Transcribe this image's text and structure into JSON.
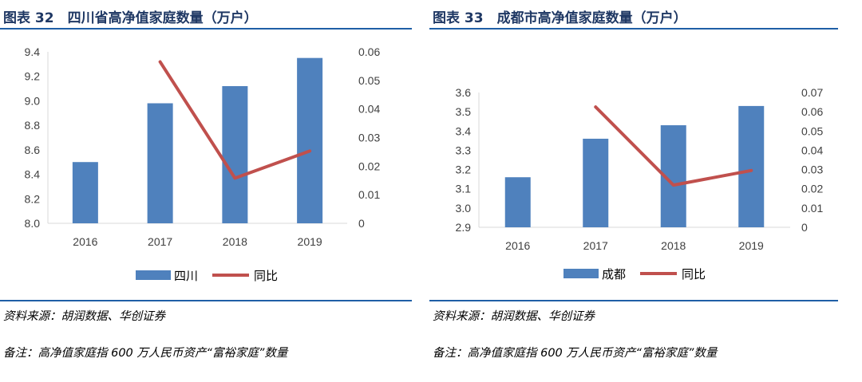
{
  "left": {
    "title": "图表 32　四川省高净值家庭数量（万户）",
    "source": "资料来源：胡润数据、华创证券",
    "remark": "备注：高净值家庭指 600 万人民币资产“富裕家庭”数量",
    "chart_data": {
      "type": "bar+line",
      "categories": [
        "2016",
        "2017",
        "2018",
        "2019"
      ],
      "series": [
        {
          "name": "四川",
          "type": "bar",
          "axis": "left",
          "values": [
            8.5,
            8.98,
            9.12,
            9.35
          ],
          "color": "#4f81bd"
        },
        {
          "name": "同比",
          "type": "line",
          "axis": "right",
          "values": [
            null,
            0.0565,
            0.0158,
            0.0253
          ],
          "color": "#c0504d"
        }
      ],
      "y_left": {
        "min": 8.0,
        "max": 9.4,
        "ticks": [
          "8.0",
          "8.2",
          "8.4",
          "8.6",
          "8.8",
          "9.0",
          "9.2",
          "9.4"
        ]
      },
      "y_right": {
        "min": 0,
        "max": 0.06,
        "ticks": [
          "0",
          "0.01",
          "0.02",
          "0.03",
          "0.04",
          "0.05",
          "0.06"
        ]
      },
      "legend": "bottom"
    }
  },
  "right": {
    "title": "图表 33　成都市高净值家庭数量（万户）",
    "source": "资料来源：胡润数据、华创证券",
    "remark": "备注：高净值家庭指 600 万人民币资产“富裕家庭”数量",
    "chart_data": {
      "type": "bar+line",
      "categories": [
        "2016",
        "2017",
        "2018",
        "2019"
      ],
      "series": [
        {
          "name": "成都",
          "type": "bar",
          "axis": "left",
          "values": [
            3.16,
            3.36,
            3.43,
            3.53
          ],
          "color": "#4f81bd"
        },
        {
          "name": "同比",
          "type": "line",
          "axis": "right",
          "values": [
            null,
            0.0625,
            0.0219,
            0.0295
          ],
          "color": "#c0504d"
        }
      ],
      "y_left": {
        "min": 2.9,
        "max": 3.6,
        "ticks": [
          "2.9",
          "3.0",
          "3.1",
          "3.2",
          "3.3",
          "3.4",
          "3.5",
          "3.6"
        ]
      },
      "y_right": {
        "min": 0,
        "max": 0.07,
        "ticks": [
          "0",
          "0.01",
          "0.02",
          "0.03",
          "0.04",
          "0.05",
          "0.06",
          "0.07"
        ]
      },
      "legend": "bottom"
    }
  }
}
